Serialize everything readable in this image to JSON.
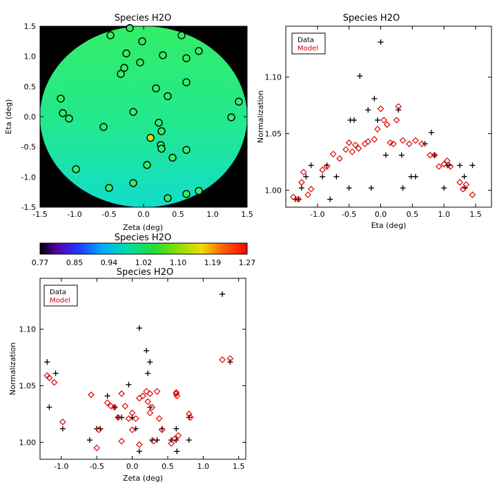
{
  "colors": {
    "data": "#000000",
    "model": "#dd0000",
    "disk": "#22e080",
    "point": "#33ee66",
    "outlier": "#ccdd22"
  },
  "chart_data": [
    {
      "type": "scatter",
      "title": "Species H2O",
      "xlabel": "Zeta (deg)",
      "ylabel": "Eta (deg)",
      "xlim": [
        -1.5,
        1.5
      ],
      "ylim": [
        -1.5,
        1.5
      ],
      "xticks": [
        "-1.5",
        "-1.0",
        "-0.5",
        "0.0",
        "0.5",
        "1.0",
        "1.5"
      ],
      "yticks": [
        "-1.5",
        "-1.0",
        "-0.5",
        "0.0",
        "0.5",
        "1.0",
        "1.5"
      ],
      "points": [
        [
          -0.48,
          1.35
        ],
        [
          -0.2,
          1.47
        ],
        [
          -0.02,
          1.25
        ],
        [
          0.55,
          1.35
        ],
        [
          -0.25,
          1.05
        ],
        [
          0.62,
          0.97
        ],
        [
          0.8,
          1.09
        ],
        [
          -0.28,
          0.81
        ],
        [
          -0.33,
          0.71
        ],
        [
          -0.05,
          0.9
        ],
        [
          0.28,
          1.02
        ],
        [
          0.62,
          0.57
        ],
        [
          0.18,
          0.47
        ],
        [
          0.35,
          0.34
        ],
        [
          -1.2,
          0.3
        ],
        [
          -1.17,
          0.06
        ],
        [
          -1.08,
          -0.03
        ],
        [
          -0.15,
          0.08
        ],
        [
          0.22,
          -0.1
        ],
        [
          0.26,
          -0.24
        ],
        [
          -0.58,
          -0.17
        ],
        [
          0.1,
          -0.35
        ],
        [
          0.25,
          -0.47
        ],
        [
          0.26,
          -0.53
        ],
        [
          0.62,
          -0.55
        ],
        [
          0.42,
          -0.68
        ],
        [
          0.05,
          -0.8
        ],
        [
          -0.98,
          -0.87
        ],
        [
          -0.15,
          -1.1
        ],
        [
          -0.5,
          -1.18
        ],
        [
          0.62,
          -1.28
        ],
        [
          0.8,
          -1.23
        ],
        [
          0.35,
          -1.35
        ],
        [
          1.27,
          -0.01
        ],
        [
          1.38,
          0.25
        ]
      ],
      "outlier_index": 21,
      "colorbar": {
        "title": "Species H2O",
        "ticks": [
          "0.77",
          "0.85",
          "0.94",
          "1.02",
          "1.10",
          "1.19",
          "1.27"
        ]
      }
    },
    {
      "type": "scatter",
      "title": "Species H2O",
      "xlabel": "Eta (deg)",
      "ylabel": "Normalization",
      "xlim": [
        -1.5,
        1.75
      ],
      "ylim": [
        0.985,
        1.145
      ],
      "xticks": [
        -1.0,
        -0.5,
        0.0,
        0.5,
        1.0,
        1.5
      ],
      "yticks": [
        1.0,
        1.05,
        1.1
      ],
      "legend": [
        "Data",
        "Model"
      ],
      "series": [
        {
          "name": "Data",
          "marker": "plus",
          "points": [
            [
              -1.35,
              0.992
            ],
            [
              -1.3,
              0.992
            ],
            [
              -1.25,
              1.002
            ],
            [
              -1.18,
              1.012
            ],
            [
              -1.1,
              1.022
            ],
            [
              -0.92,
              1.012
            ],
            [
              -0.85,
              1.022
            ],
            [
              -0.8,
              0.992
            ],
            [
              -0.7,
              1.012
            ],
            [
              -0.5,
              1.002
            ],
            [
              -0.48,
              1.062
            ],
            [
              -0.42,
              1.062
            ],
            [
              -0.33,
              1.101
            ],
            [
              -0.2,
              1.071
            ],
            [
              -0.15,
              1.002
            ],
            [
              -0.1,
              1.081
            ],
            [
              -0.05,
              1.062
            ],
            [
              0.0,
              1.131
            ],
            [
              0.08,
              1.031
            ],
            [
              0.28,
              1.071
            ],
            [
              0.33,
              1.031
            ],
            [
              0.35,
              1.002
            ],
            [
              0.48,
              1.012
            ],
            [
              0.55,
              1.012
            ],
            [
              0.8,
              1.051
            ],
            [
              0.7,
              1.041
            ],
            [
              0.85,
              1.031
            ],
            [
              1.0,
              1.002
            ],
            [
              1.05,
              1.022
            ],
            [
              1.08,
              1.022
            ],
            [
              1.25,
              1.022
            ],
            [
              1.32,
              1.012
            ],
            [
              1.33,
              1.002
            ],
            [
              1.45,
              1.022
            ]
          ]
        },
        {
          "name": "Model",
          "marker": "diamond",
          "points": [
            [
              -1.38,
              0.994
            ],
            [
              -1.3,
              0.992
            ],
            [
              -1.25,
              1.007
            ],
            [
              -1.22,
              1.016
            ],
            [
              -1.15,
              0.996
            ],
            [
              -1.1,
              1.001
            ],
            [
              -0.92,
              1.018
            ],
            [
              -0.85,
              1.021
            ],
            [
              -0.75,
              1.032
            ],
            [
              -0.65,
              1.028
            ],
            [
              -0.55,
              1.036
            ],
            [
              -0.5,
              1.042
            ],
            [
              -0.45,
              1.034
            ],
            [
              -0.4,
              1.04
            ],
            [
              -0.35,
              1.037
            ],
            [
              -0.25,
              1.041
            ],
            [
              -0.2,
              1.043
            ],
            [
              -0.1,
              1.045
            ],
            [
              -0.05,
              1.054
            ],
            [
              0.0,
              1.072
            ],
            [
              0.05,
              1.062
            ],
            [
              0.1,
              1.058
            ],
            [
              0.15,
              1.042
            ],
            [
              0.2,
              1.041
            ],
            [
              0.25,
              1.062
            ],
            [
              0.28,
              1.074
            ],
            [
              0.35,
              1.044
            ],
            [
              0.45,
              1.041
            ],
            [
              0.55,
              1.044
            ],
            [
              0.65,
              1.041
            ],
            [
              0.78,
              1.031
            ],
            [
              0.85,
              1.031
            ],
            [
              0.92,
              1.021
            ],
            [
              1.0,
              1.023
            ],
            [
              1.05,
              1.026
            ],
            [
              1.1,
              1.021
            ],
            [
              1.25,
              1.007
            ],
            [
              1.3,
              1.001
            ],
            [
              1.35,
              1.005
            ],
            [
              1.45,
              0.996
            ]
          ]
        }
      ]
    },
    {
      "type": "scatter",
      "title": "Species H2O",
      "xlabel": "Zeta (deg)",
      "ylabel": "Normalization",
      "xlim": [
        -1.3,
        1.6
      ],
      "ylim": [
        0.985,
        1.145
      ],
      "xticks": [
        -1.0,
        -0.5,
        0.0,
        0.5,
        1.0,
        1.5
      ],
      "yticks": [
        1.0,
        1.05,
        1.1
      ],
      "legend": [
        "Data",
        "Model"
      ],
      "series": [
        {
          "name": "Data",
          "marker": "plus",
          "points": [
            [
              -1.2,
              1.071
            ],
            [
              -1.17,
              1.031
            ],
            [
              -1.08,
              1.061
            ],
            [
              -0.98,
              1.012
            ],
            [
              -0.6,
              1.002
            ],
            [
              -0.5,
              1.012
            ],
            [
              -0.45,
              1.012
            ],
            [
              -0.35,
              1.041
            ],
            [
              -0.25,
              1.031
            ],
            [
              -0.2,
              1.022
            ],
            [
              -0.15,
              1.022
            ],
            [
              -0.05,
              1.051
            ],
            [
              0.0,
              1.022
            ],
            [
              0.05,
              1.012
            ],
            [
              0.1,
              0.992
            ],
            [
              0.1,
              1.101
            ],
            [
              0.2,
              1.081
            ],
            [
              0.25,
              1.071
            ],
            [
              0.22,
              1.061
            ],
            [
              0.25,
              1.031
            ],
            [
              0.28,
              1.002
            ],
            [
              0.35,
              1.002
            ],
            [
              0.42,
              1.012
            ],
            [
              0.55,
              1.002
            ],
            [
              0.62,
              1.002
            ],
            [
              0.62,
              1.012
            ],
            [
              0.63,
              0.992
            ],
            [
              0.8,
              1.022
            ],
            [
              0.8,
              1.002
            ],
            [
              1.27,
              1.131
            ],
            [
              1.38,
              1.071
            ]
          ]
        },
        {
          "name": "Model",
          "marker": "diamond",
          "points": [
            [
              -1.2,
              1.059
            ],
            [
              -1.17,
              1.057
            ],
            [
              -1.1,
              1.053
            ],
            [
              -0.98,
              1.018
            ],
            [
              -0.58,
              1.042
            ],
            [
              -0.5,
              0.995
            ],
            [
              -0.47,
              1.011
            ],
            [
              -0.35,
              1.035
            ],
            [
              -0.3,
              1.032
            ],
            [
              -0.25,
              1.031
            ],
            [
              -0.2,
              1.022
            ],
            [
              -0.15,
              1.043
            ],
            [
              -0.15,
              1.001
            ],
            [
              -0.1,
              1.032
            ],
            [
              -0.05,
              1.021
            ],
            [
              0.0,
              1.026
            ],
            [
              0.0,
              1.011
            ],
            [
              0.05,
              1.021
            ],
            [
              0.1,
              1.039
            ],
            [
              0.1,
              0.998
            ],
            [
              0.15,
              1.041
            ],
            [
              0.2,
              1.045
            ],
            [
              0.22,
              1.036
            ],
            [
              0.25,
              1.043
            ],
            [
              0.25,
              1.026
            ],
            [
              0.28,
              1.031
            ],
            [
              0.3,
              1.001
            ],
            [
              0.35,
              1.045
            ],
            [
              0.38,
              1.021
            ],
            [
              0.42,
              1.011
            ],
            [
              0.55,
              0.999
            ],
            [
              0.6,
              1.003
            ],
            [
              0.62,
              1.044
            ],
            [
              0.62,
              1.043
            ],
            [
              0.63,
              1.041
            ],
            [
              0.65,
              1.006
            ],
            [
              0.8,
              1.025
            ],
            [
              0.82,
              1.022
            ],
            [
              1.27,
              1.073
            ],
            [
              1.38,
              1.074
            ]
          ]
        }
      ]
    }
  ]
}
